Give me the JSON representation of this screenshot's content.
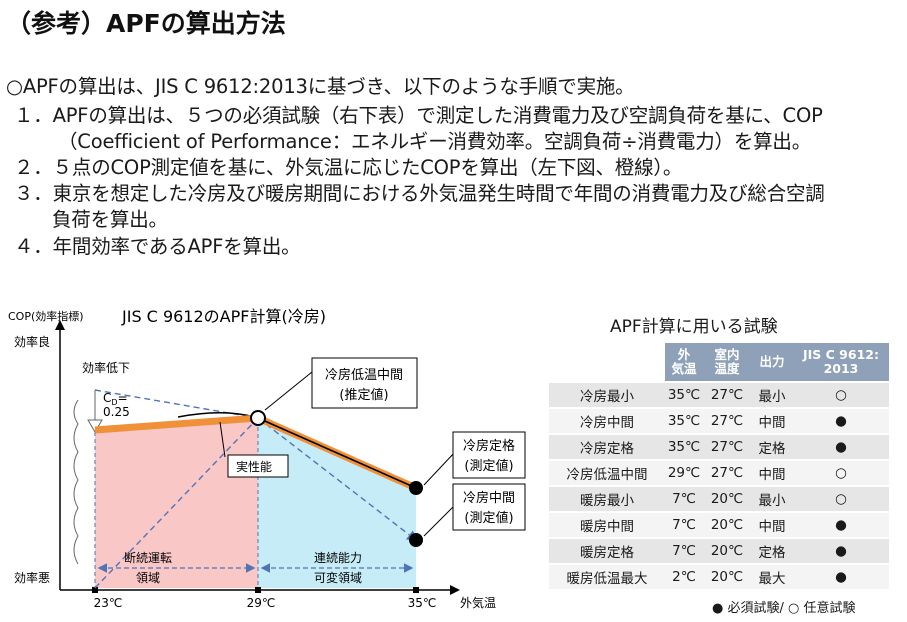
{
  "title": "（参考）APFの算出方法",
  "intro": "○APFの算出は、JIS C 9612:2013に基づき、以下のような手順で実施。",
  "steps": [
    {
      "num": "１．",
      "lines": [
        "APFの算出は、５つの必須試験（右下表）で測定した消費電力及び空調負荷を基に、COP",
        "（Coefficient of Performance：エネルギー消費効率。空調負荷÷消費電力）を算出。"
      ]
    },
    {
      "num": "２．",
      "lines": [
        "５点のCOP測定値を基に、外気温に応じたCOPを算出（左下図、橙線）。"
      ]
    },
    {
      "num": "３．",
      "lines": [
        "東京を想定した冷房及び暖房期間における外気温発生時間で年間の消費電力及び総合空調",
        "負荷を算出。"
      ]
    },
    {
      "num": "４．",
      "lines": [
        "年間効率であるAPFを算出。"
      ]
    }
  ],
  "chart": {
    "title": "JIS C 9612のAPF計算(冷房)",
    "y_axis_label": "COP(効率指標)",
    "y_high": "効率良",
    "y_low": "効率悪",
    "x_axis_label": "外気温",
    "x_ticks": [
      "23℃",
      "29℃",
      "35℃"
    ],
    "eff_drop_label": "効率低下",
    "cd_label": "C",
    "cd_sub": "D",
    "cd_value": "=",
    "cd_value2": "0.25",
    "actual_label": "実性能",
    "region_left": [
      "断続運転",
      "領域"
    ],
    "region_right": [
      "連続能力",
      "可変領域"
    ],
    "callout_low_mid": [
      "冷房低温中間",
      "(推定値)"
    ],
    "callout_rated": [
      "冷房定格",
      "(測定値)"
    ],
    "callout_mid": [
      "冷房中間",
      "(測定値)"
    ],
    "colors": {
      "orange": "#f0913a",
      "pink": "#f9c7c6",
      "cyan": "#c6ecf7",
      "dash": "#4f74b8"
    }
  },
  "table": {
    "title": "APF計算に用いる試験",
    "headers": [
      "",
      "外\n気温",
      "室内\n温度",
      "出力",
      "JIS C 9612:\n2013"
    ],
    "rows": [
      {
        "name": "冷房最小",
        "outdoor": "35℃",
        "indoor": "27℃",
        "output": "最小",
        "mark": "○"
      },
      {
        "name": "冷房中間",
        "outdoor": "35℃",
        "indoor": "27℃",
        "output": "中間",
        "mark": "●"
      },
      {
        "name": "冷房定格",
        "outdoor": "35℃",
        "indoor": "27℃",
        "output": "定格",
        "mark": "●"
      },
      {
        "name": "冷房低温中間",
        "outdoor": "29℃",
        "indoor": "27℃",
        "output": "中間",
        "mark": "○"
      },
      {
        "name": "暖房最小",
        "outdoor": "7℃",
        "indoor": "20℃",
        "output": "最小",
        "mark": "○"
      },
      {
        "name": "暖房中間",
        "outdoor": "7℃",
        "indoor": "20℃",
        "output": "中間",
        "mark": "●"
      },
      {
        "name": "暖房定格",
        "outdoor": "7℃",
        "indoor": "20℃",
        "output": "定格",
        "mark": "●"
      },
      {
        "name": "暖房低温最大",
        "outdoor": "2℃",
        "indoor": "20℃",
        "output": "最大",
        "mark": "●"
      }
    ],
    "legend": "●  必須試験/  ○  任意試験"
  }
}
